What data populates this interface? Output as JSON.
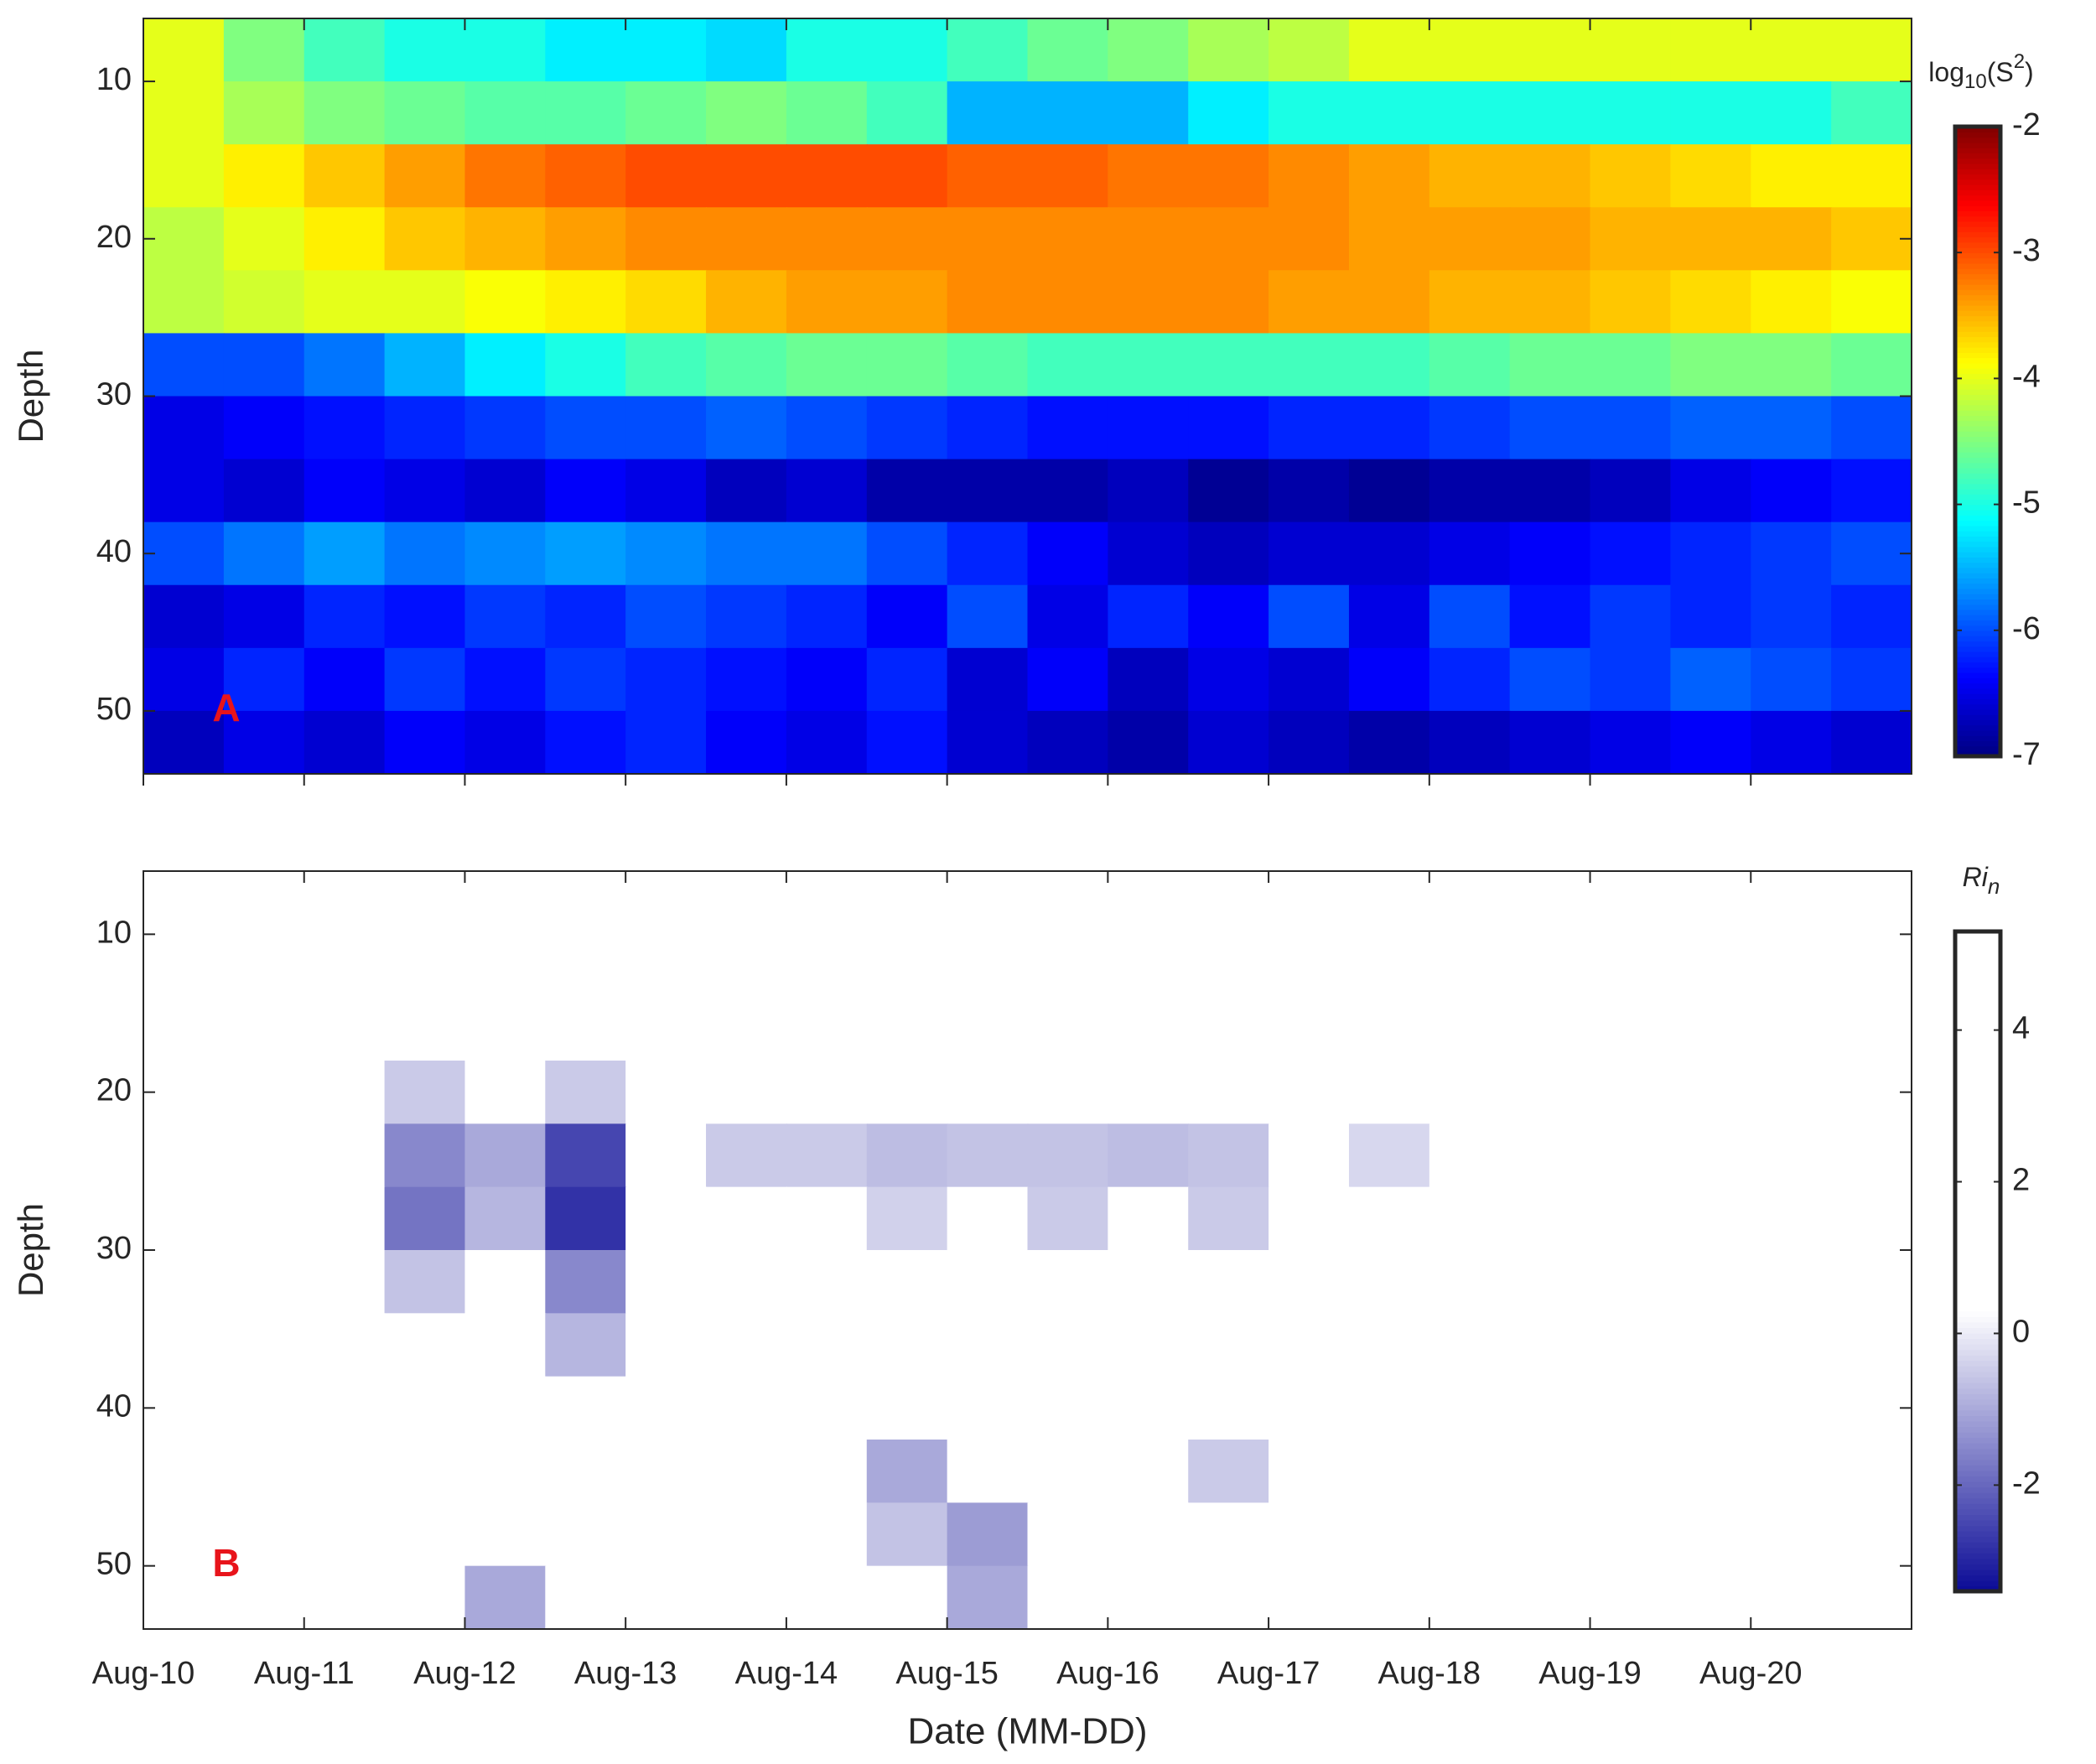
{
  "chart_data": [
    {
      "type": "heatmap",
      "colormap": "jet",
      "ylabel": "Depth",
      "annotation": "A",
      "colorbar_label": [
        "log",
        "10",
        "(S",
        "2",
        ")"
      ],
      "x": [
        0.25,
        0.75,
        1.25,
        1.75,
        2.25,
        2.75,
        3.25,
        3.75,
        4.25,
        4.75,
        5.25,
        5.75,
        6.25,
        6.75,
        7.25,
        7.75,
        8.25,
        8.75,
        9.25,
        9.75,
        10.25,
        10.75
      ],
      "depths": [
        8,
        12,
        16,
        20,
        24,
        28,
        32,
        36,
        40,
        44,
        48,
        52
      ],
      "values": [
        [
          -4,
          -4.5,
          -4.8,
          -5,
          -5,
          -5.2,
          -5.2,
          -5.3,
          -5,
          -5,
          -4.8,
          -4.6,
          -4.5,
          -4.3,
          -4.2,
          -4,
          -4,
          -4,
          -4,
          -4,
          -4,
          -4
        ],
        [
          -4,
          -4.3,
          -4.5,
          -4.6,
          -4.7,
          -4.7,
          -4.6,
          -4.5,
          -4.6,
          -4.8,
          -5.5,
          -5.5,
          -5.5,
          -5.2,
          -5,
          -5,
          -5,
          -5,
          -5,
          -5,
          -5,
          -4.8
        ],
        [
          -4,
          -3.8,
          -3.6,
          -3.4,
          -3.2,
          -3.1,
          -3,
          -3,
          -3,
          -3,
          -3.1,
          -3.1,
          -3.2,
          -3.2,
          -3.3,
          -3.4,
          -3.5,
          -3.5,
          -3.6,
          -3.7,
          -3.8,
          -3.8
        ],
        [
          -4.2,
          -4,
          -3.8,
          -3.6,
          -3.5,
          -3.4,
          -3.3,
          -3.3,
          -3.3,
          -3.3,
          -3.3,
          -3.3,
          -3.3,
          -3.3,
          -3.3,
          -3.4,
          -3.4,
          -3.4,
          -3.5,
          -3.5,
          -3.5,
          -3.6
        ],
        [
          -4.2,
          -4.1,
          -4,
          -4,
          -3.9,
          -3.8,
          -3.7,
          -3.5,
          -3.4,
          -3.4,
          -3.3,
          -3.3,
          -3.3,
          -3.3,
          -3.4,
          -3.4,
          -3.5,
          -3.5,
          -3.6,
          -3.7,
          -3.8,
          -3.9
        ],
        [
          -6,
          -6,
          -5.8,
          -5.5,
          -5.2,
          -5,
          -4.8,
          -4.7,
          -4.6,
          -4.6,
          -4.7,
          -4.8,
          -4.8,
          -4.8,
          -4.8,
          -4.8,
          -4.7,
          -4.6,
          -4.6,
          -4.5,
          -4.5,
          -4.6
        ],
        [
          -6.5,
          -6.4,
          -6.3,
          -6.2,
          -6.1,
          -6,
          -6,
          -5.9,
          -6,
          -6.1,
          -6.2,
          -6.3,
          -6.3,
          -6.3,
          -6.2,
          -6.2,
          -6.1,
          -6,
          -6,
          -5.9,
          -5.9,
          -6
        ],
        [
          -6.5,
          -6.6,
          -6.4,
          -6.5,
          -6.6,
          -6.4,
          -6.5,
          -6.7,
          -6.6,
          -6.8,
          -6.8,
          -6.8,
          -6.7,
          -6.9,
          -6.8,
          -6.9,
          -6.8,
          -6.8,
          -6.7,
          -6.5,
          -6.4,
          -6.3
        ],
        [
          -6,
          -5.8,
          -5.6,
          -5.8,
          -5.7,
          -5.6,
          -5.7,
          -5.8,
          -5.8,
          -6,
          -6.2,
          -6.4,
          -6.6,
          -6.7,
          -6.6,
          -6.6,
          -6.5,
          -6.4,
          -6.3,
          -6.2,
          -6.1,
          -6
        ],
        [
          -6.6,
          -6.5,
          -6.2,
          -6.3,
          -6.1,
          -6.2,
          -6,
          -6.1,
          -6.2,
          -6.4,
          -6,
          -6.5,
          -6.2,
          -6.4,
          -6,
          -6.5,
          -6,
          -6.3,
          -6.1,
          -6.2,
          -6.1,
          -6.2
        ],
        [
          -6.5,
          -6.2,
          -6.4,
          -6.1,
          -6.3,
          -6.1,
          -6.2,
          -6.3,
          -6.4,
          -6.2,
          -6.6,
          -6.4,
          -6.7,
          -6.5,
          -6.6,
          -6.4,
          -6.2,
          -6,
          -6.1,
          -5.9,
          -6,
          -6.1
        ],
        [
          -6.7,
          -6.5,
          -6.6,
          -6.4,
          -6.5,
          -6.3,
          -6.2,
          -6.4,
          -6.5,
          -6.3,
          -6.6,
          -6.7,
          -6.8,
          -6.6,
          -6.7,
          -6.8,
          -6.7,
          -6.6,
          -6.5,
          -6.4,
          -6.5,
          -6.6
        ]
      ],
      "xlim": [
        0,
        11
      ],
      "xticks": [
        0,
        1,
        2,
        3,
        4,
        5,
        6,
        7,
        8,
        9,
        10
      ],
      "ylim": [
        6,
        54
      ],
      "yticks": [
        10,
        20,
        30,
        40,
        50
      ],
      "clim": [
        -7,
        -2
      ],
      "cticks": [
        -7,
        -6,
        -5,
        -4,
        -3,
        -2
      ]
    },
    {
      "type": "heatmap",
      "colormap": "blue-white",
      "ylabel": "Depth",
      "xlabel": "Date (MM-DD)",
      "annotation": "B",
      "colorbar_label": [
        "Ri",
        "n"
      ],
      "x": [
        0.25,
        0.75,
        1.25,
        1.75,
        2.25,
        2.75,
        3.25,
        3.75,
        4.25,
        4.75,
        5.25,
        5.75,
        6.25,
        6.75,
        7.25,
        7.75,
        8.25,
        8.75,
        9.25,
        9.75,
        10.25,
        10.75
      ],
      "depths": [
        8,
        12,
        16,
        20,
        24,
        28,
        32,
        36,
        40,
        44,
        48,
        52
      ],
      "values": [
        [
          1,
          1,
          1,
          1,
          1,
          1,
          1,
          1,
          1,
          1,
          1,
          1,
          1,
          1,
          1,
          1,
          1,
          1,
          1,
          1,
          1,
          1
        ],
        [
          1,
          1,
          1,
          1,
          1,
          1,
          1,
          1,
          1,
          1,
          1,
          1,
          1,
          1,
          1,
          1,
          1,
          1,
          1,
          1,
          1,
          1
        ],
        [
          1,
          1,
          1,
          1,
          1,
          1,
          1,
          1,
          1,
          1,
          1,
          1,
          1,
          1,
          1,
          1,
          1,
          1,
          1,
          1,
          1,
          1
        ],
        [
          1,
          1,
          1,
          -0.5,
          1,
          -0.5,
          1,
          1,
          1,
          1,
          1,
          1,
          1,
          1,
          1,
          1,
          1,
          1,
          1,
          1,
          1,
          1
        ],
        [
          1,
          1,
          1,
          -1.5,
          -1,
          -2.5,
          1,
          -0.5,
          -0.5,
          -0.7,
          -0.6,
          -0.6,
          -0.7,
          -0.6,
          1,
          -0.3,
          1,
          1,
          1,
          1,
          1,
          1
        ],
        [
          1,
          1,
          1,
          -1.8,
          -0.8,
          -2.8,
          1,
          1,
          1,
          -0.4,
          1,
          -0.5,
          1,
          -0.5,
          1,
          1,
          1,
          1,
          1,
          1,
          1,
          1
        ],
        [
          1,
          1,
          1,
          -0.6,
          1,
          -1.5,
          1,
          1,
          1,
          1,
          1,
          1,
          1,
          1,
          1,
          1,
          1,
          1,
          1,
          1,
          1,
          1
        ],
        [
          1,
          1,
          1,
          1,
          1,
          -0.8,
          1,
          1,
          1,
          1,
          1,
          1,
          1,
          1,
          1,
          1,
          1,
          1,
          1,
          1,
          1,
          1
        ],
        [
          1,
          1,
          1,
          1,
          1,
          1,
          1,
          1,
          1,
          1,
          1,
          1,
          1,
          1,
          1,
          1,
          1,
          1,
          1,
          1,
          1,
          1
        ],
        [
          1,
          1,
          1,
          1,
          1,
          1,
          1,
          1,
          1,
          -1,
          1,
          1,
          1,
          -0.5,
          1,
          1,
          1,
          1,
          1,
          1,
          1,
          1
        ],
        [
          1,
          1,
          1,
          1,
          1,
          1,
          1,
          1,
          1,
          -0.6,
          -1.2,
          1,
          1,
          1,
          1,
          1,
          1,
          1,
          1,
          1,
          1,
          1
        ],
        [
          1,
          1,
          1,
          1,
          -1,
          1,
          1,
          1,
          1,
          1,
          -1,
          1,
          1,
          1,
          1,
          1,
          1,
          1,
          1,
          1,
          1,
          1
        ]
      ],
      "xlim": [
        0,
        11
      ],
      "xticks": [
        {
          "value": 0,
          "label": "Aug-10"
        },
        {
          "value": 1,
          "label": "Aug-11"
        },
        {
          "value": 2,
          "label": "Aug-12"
        },
        {
          "value": 3,
          "label": "Aug-13"
        },
        {
          "value": 4,
          "label": "Aug-14"
        },
        {
          "value": 5,
          "label": "Aug-15"
        },
        {
          "value": 6,
          "label": "Aug-16"
        },
        {
          "value": 7,
          "label": "Aug-17"
        },
        {
          "value": 8,
          "label": "Aug-18"
        },
        {
          "value": 9,
          "label": "Aug-19"
        },
        {
          "value": 10,
          "label": "Aug-20"
        }
      ],
      "ylim": [
        6,
        54
      ],
      "yticks": [
        10,
        20,
        30,
        40,
        50
      ],
      "clim": [
        -3.4,
        5.3
      ],
      "cticks": [
        -2,
        0,
        2,
        4
      ]
    }
  ]
}
